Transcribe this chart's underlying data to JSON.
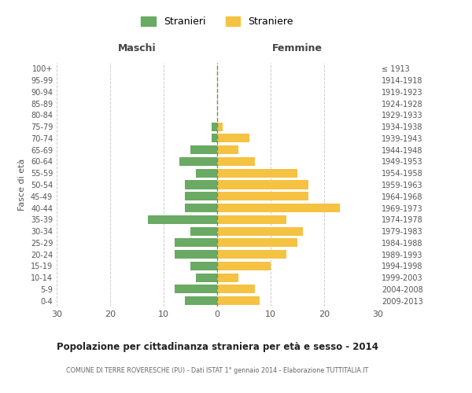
{
  "age_groups": [
    "0-4",
    "5-9",
    "10-14",
    "15-19",
    "20-24",
    "25-29",
    "30-34",
    "35-39",
    "40-44",
    "45-49",
    "50-54",
    "55-59",
    "60-64",
    "65-69",
    "70-74",
    "75-79",
    "80-84",
    "85-89",
    "90-94",
    "95-99",
    "100+"
  ],
  "birth_years": [
    "2009-2013",
    "2004-2008",
    "1999-2003",
    "1994-1998",
    "1989-1993",
    "1984-1988",
    "1979-1983",
    "1974-1978",
    "1969-1973",
    "1964-1968",
    "1959-1963",
    "1954-1958",
    "1949-1953",
    "1944-1948",
    "1939-1943",
    "1934-1938",
    "1929-1933",
    "1924-1928",
    "1919-1923",
    "1914-1918",
    "≤ 1913"
  ],
  "males": [
    6,
    8,
    4,
    5,
    8,
    8,
    5,
    13,
    6,
    6,
    6,
    4,
    7,
    5,
    1,
    1,
    0,
    0,
    0,
    0,
    0
  ],
  "females": [
    8,
    7,
    4,
    10,
    13,
    15,
    16,
    13,
    23,
    17,
    17,
    15,
    7,
    4,
    6,
    1,
    0,
    0,
    0,
    0,
    0
  ],
  "male_color": "#6aaa64",
  "female_color": "#f5c242",
  "background_color": "#ffffff",
  "grid_color": "#cccccc",
  "title": "Popolazione per cittadinanza straniera per età e sesso - 2014",
  "subtitle": "COMUNE DI TERRE ROVERESCHE (PU) - Dati ISTAT 1° gennaio 2014 - Elaborazione TUTTITALIA.IT",
  "xlabel_left": "Maschi",
  "xlabel_right": "Femmine",
  "ylabel_left": "Fasce di età",
  "legend_male": "Stranieri",
  "legend_female": "Straniere",
  "xlim": 30
}
